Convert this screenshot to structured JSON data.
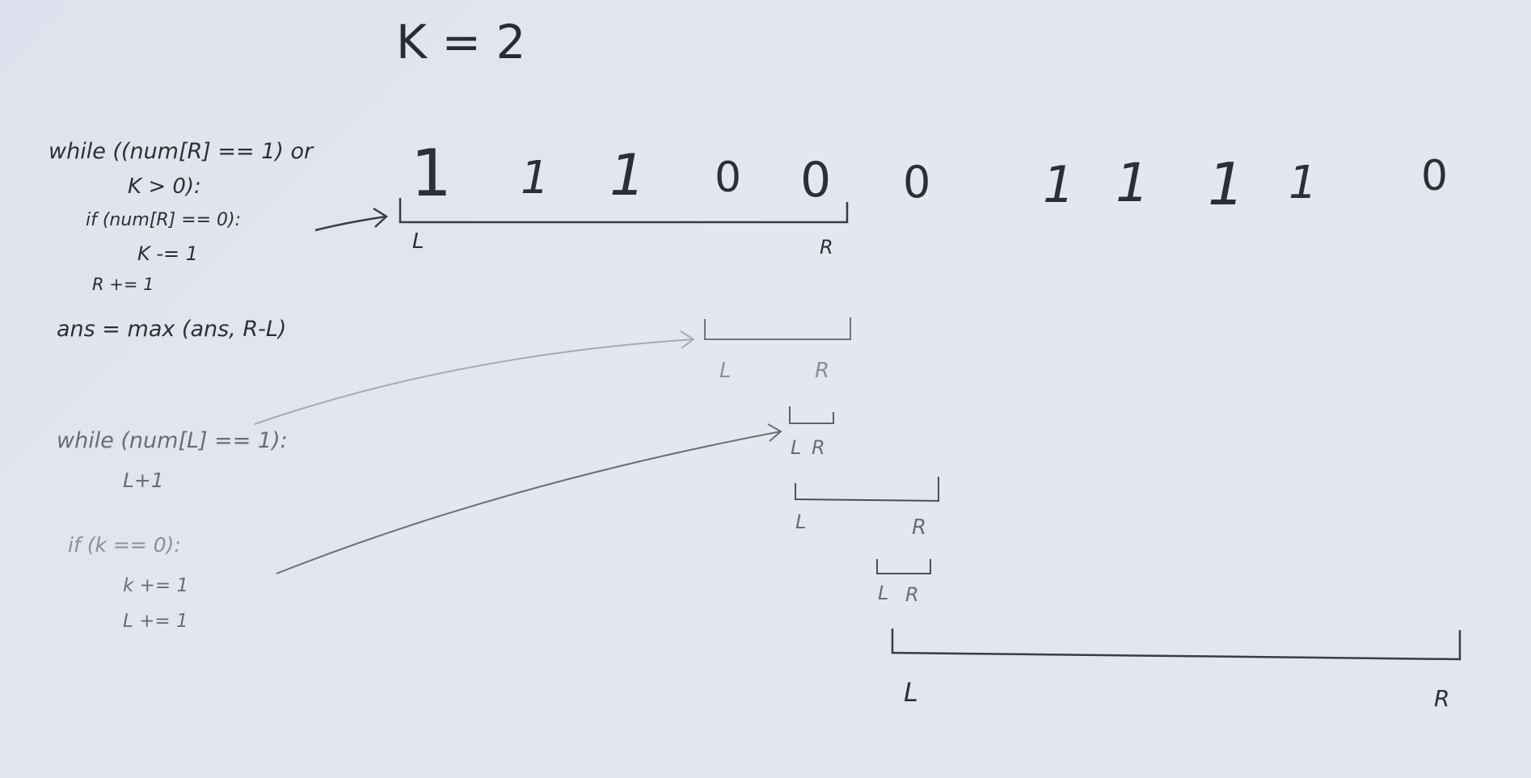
{
  "title": "K = 2",
  "array": [
    "1",
    "1",
    "1",
    "0",
    "0",
    "0",
    "1",
    "1",
    "1",
    "1",
    "0"
  ],
  "code": {
    "line1": "while ((num[R] == 1) or",
    "line2": "K > 0):",
    "line3": "if (num[R] == 0):",
    "line4": "K -= 1",
    "line5": "R += 1",
    "line6": "ans = max (ans, R-L)",
    "line7": "while (num[L] == 1):",
    "line8": "L+1",
    "line9": "if (k == 0):",
    "line10": "k += 1",
    "line11": "L += 1"
  },
  "windows": {
    "w1": {
      "l": "L",
      "r": "R"
    },
    "w2": {
      "l": "L",
      "r": "R"
    },
    "w3": {
      "l": "L",
      "r": "R"
    },
    "w4": {
      "l": "L",
      "r": "R"
    },
    "w5": {
      "l": "L",
      "r": "R"
    },
    "w6": {
      "l": "L",
      "r": "R"
    }
  }
}
